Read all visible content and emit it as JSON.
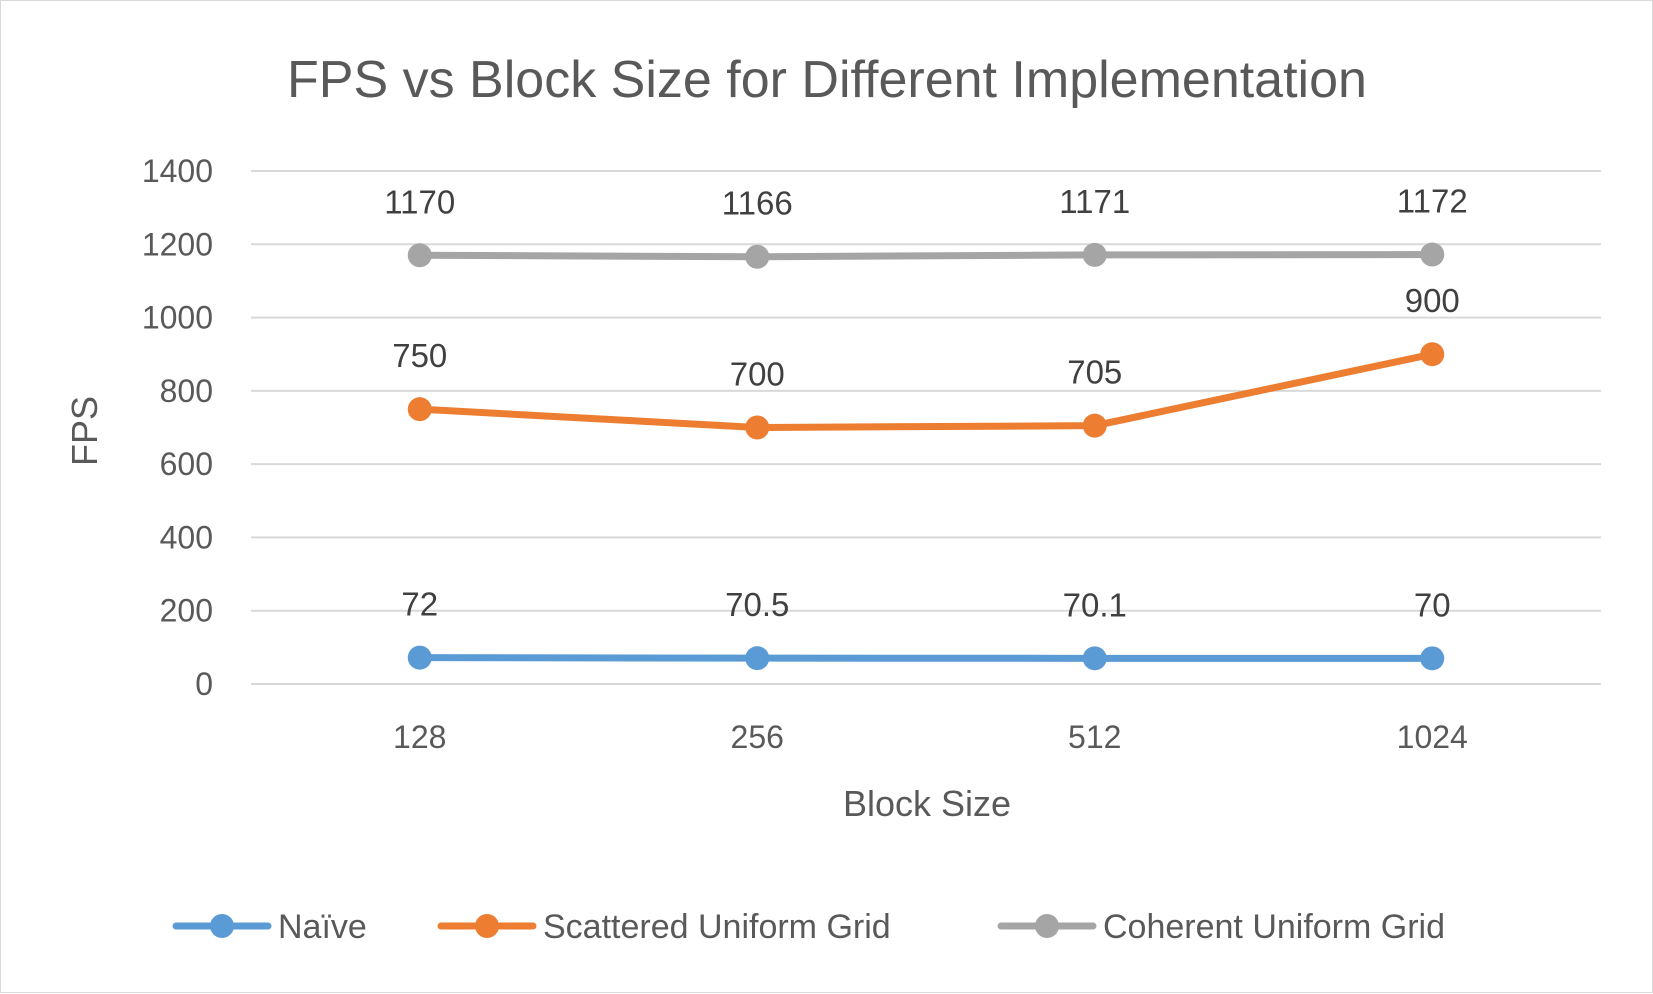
{
  "chart_data": {
    "type": "line",
    "title": "FPS vs Block Size for Different Implementation",
    "xlabel": "Block Size",
    "ylabel": "FPS",
    "categories": [
      "128",
      "256",
      "512",
      "1024"
    ],
    "ylim": [
      0,
      1400
    ],
    "yticks": [
      0,
      200,
      400,
      600,
      800,
      1000,
      1200,
      1400
    ],
    "grid": true,
    "legend_position": "bottom",
    "series": [
      {
        "name": "Naïve",
        "color": "#5b9bd5",
        "values": [
          72,
          70.5,
          70.1,
          70
        ],
        "labels": [
          "72",
          "70.5",
          "70.1",
          "70"
        ]
      },
      {
        "name": "Scattered Uniform Grid",
        "color": "#ed7d31",
        "values": [
          750,
          700,
          705,
          900
        ],
        "labels": [
          "750",
          "700",
          "705",
          "900"
        ]
      },
      {
        "name": "Coherent Uniform Grid",
        "color": "#a5a5a5",
        "values": [
          1170,
          1166,
          1171,
          1172
        ],
        "labels": [
          "1170",
          "1166",
          "1171",
          "1172"
        ]
      }
    ]
  }
}
